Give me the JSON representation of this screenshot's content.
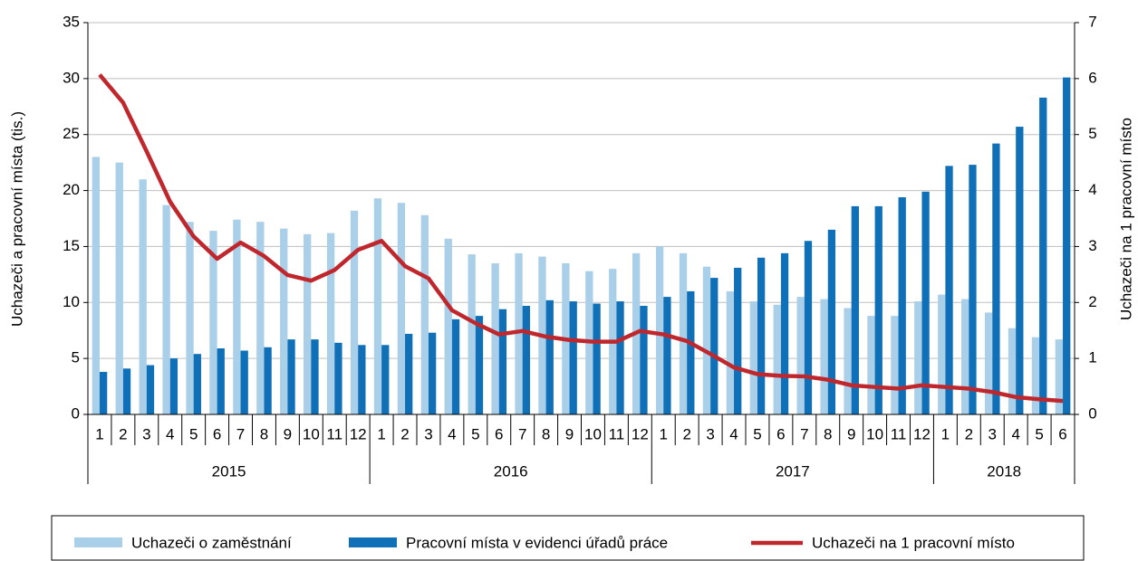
{
  "chart_data": {
    "type": "bar",
    "ylabel": "Uchazeči a pracovní místa (tis.)",
    "y2label": "Uchazeči na 1 pracovní místo",
    "ylim": [
      0,
      35
    ],
    "yticks": [
      0,
      5,
      10,
      15,
      20,
      25,
      30,
      35
    ],
    "y2lim": [
      0,
      7
    ],
    "y2ticks": [
      0,
      1,
      2,
      3,
      4,
      5,
      6,
      7
    ],
    "grid": true,
    "legend": "bottom",
    "category_groups": [
      {
        "label": "2015",
        "categories": [
          "1",
          "2",
          "3",
          "4",
          "5",
          "6",
          "7",
          "8",
          "9",
          "10",
          "11",
          "12"
        ]
      },
      {
        "label": "2016",
        "categories": [
          "1",
          "2",
          "3",
          "4",
          "5",
          "6",
          "7",
          "8",
          "9",
          "10",
          "11",
          "12"
        ]
      },
      {
        "label": "2017",
        "categories": [
          "1",
          "2",
          "3",
          "4",
          "5",
          "6",
          "7",
          "8",
          "9",
          "10",
          "11",
          "12"
        ]
      },
      {
        "label": "2018",
        "categories": [
          "1",
          "2",
          "3",
          "4",
          "5",
          "6"
        ]
      }
    ],
    "series": [
      {
        "name": "Uchazeči o zaměstnání",
        "type": "bar",
        "color": "#a9cfe9",
        "values": [
          23.0,
          22.5,
          21.0,
          18.7,
          17.2,
          16.4,
          17.4,
          17.2,
          16.6,
          16.1,
          16.2,
          18.2,
          19.3,
          18.9,
          17.8,
          15.7,
          14.3,
          13.5,
          14.4,
          14.1,
          13.5,
          12.8,
          13.0,
          14.4,
          15.0,
          14.4,
          13.2,
          11.0,
          10.1,
          9.8,
          10.5,
          10.3,
          9.5,
          8.8,
          8.8,
          10.1,
          10.7,
          10.3,
          9.1,
          7.7,
          6.9,
          6.7
        ]
      },
      {
        "name": "Pracovní místa v evidenci úřadů práce",
        "type": "bar",
        "color": "#0f70b7",
        "values": [
          3.8,
          4.1,
          4.4,
          5.0,
          5.4,
          5.9,
          5.7,
          6.0,
          6.7,
          6.7,
          6.4,
          6.2,
          6.2,
          7.2,
          7.3,
          8.5,
          8.8,
          9.4,
          9.7,
          10.2,
          10.1,
          9.9,
          10.1,
          9.7,
          10.5,
          11.0,
          12.2,
          13.1,
          14.0,
          14.4,
          15.5,
          16.5,
          18.6,
          18.6,
          19.4,
          19.9,
          22.2,
          22.3,
          24.2,
          25.7,
          28.3,
          30.1
        ]
      },
      {
        "name": "Uchazeči na 1 pracovní místo",
        "type": "line",
        "axis": "y2",
        "color": "#c0272d",
        "values": [
          6.07,
          5.57,
          4.7,
          3.8,
          3.18,
          2.78,
          3.07,
          2.83,
          2.49,
          2.39,
          2.58,
          2.94,
          3.1,
          2.65,
          2.43,
          1.86,
          1.63,
          1.43,
          1.49,
          1.39,
          1.33,
          1.3,
          1.3,
          1.49,
          1.43,
          1.31,
          1.08,
          0.84,
          0.72,
          0.69,
          0.68,
          0.62,
          0.52,
          0.49,
          0.46,
          0.52,
          0.49,
          0.46,
          0.4,
          0.31,
          0.27,
          0.24
        ]
      }
    ]
  }
}
